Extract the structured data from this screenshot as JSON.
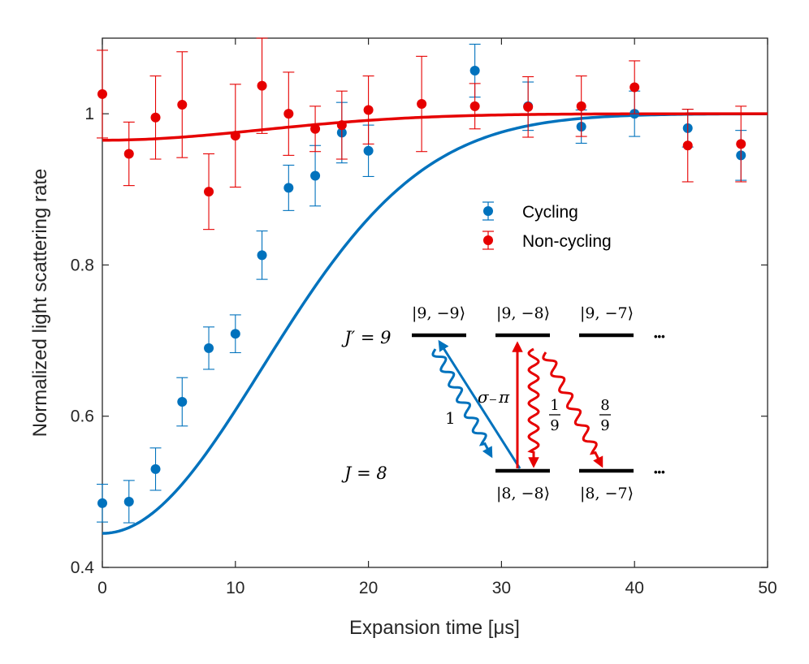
{
  "chart_data": {
    "type": "scatter",
    "xlabel": "Expansion time [μs]",
    "ylabel": "Normalized light scattering rate",
    "xlim": [
      0,
      50
    ],
    "ylim": [
      0.4,
      1.1
    ],
    "xticks": [
      "0",
      "10",
      "20",
      "30",
      "40",
      "50"
    ],
    "yticks": [
      "0.4",
      "0.6",
      "0.8",
      "1"
    ],
    "grid": false,
    "legend_position": "center-right",
    "series": [
      {
        "name": "Cycling",
        "color": "#0072bd",
        "x": [
          0,
          2,
          4,
          6,
          8,
          10,
          12,
          14,
          16,
          18,
          20,
          28,
          32,
          36,
          40,
          44,
          48
        ],
        "y": [
          0.485,
          0.487,
          0.53,
          0.619,
          0.69,
          0.709,
          0.813,
          0.902,
          0.918,
          0.975,
          0.951,
          1.057,
          1.01,
          0.983,
          1.0,
          0.981,
          0.945
        ],
        "err": [
          0.025,
          0.028,
          0.028,
          0.032,
          0.028,
          0.025,
          0.032,
          0.03,
          0.04,
          0.04,
          0.034,
          0.035,
          0.032,
          0.022,
          0.03,
          0.025,
          0.033
        ]
      },
      {
        "name": "Non-cycling",
        "color": "#e60000",
        "x": [
          0,
          2,
          4,
          6,
          8,
          10,
          12,
          14,
          16,
          18,
          20,
          24,
          28,
          32,
          36,
          40,
          44,
          48
        ],
        "y": [
          1.026,
          0.947,
          0.995,
          1.012,
          0.897,
          0.971,
          1.037,
          1.0,
          0.98,
          0.985,
          1.005,
          1.013,
          1.01,
          1.009,
          1.01,
          1.035,
          0.958,
          0.96
        ],
        "err": [
          0.058,
          0.042,
          0.055,
          0.07,
          0.05,
          0.068,
          0.063,
          0.055,
          0.03,
          0.045,
          0.045,
          0.063,
          0.03,
          0.04,
          0.04,
          0.035,
          0.048,
          0.05
        ]
      }
    ],
    "fits": [
      {
        "series": "Cycling",
        "color": "#0072bd",
        "model": "gaussian",
        "base": 0.445,
        "sigma": 12
      },
      {
        "series": "Non-cycling",
        "color": "#e60000",
        "model": "gaussian",
        "base": 0.965,
        "sigma": 12
      }
    ],
    "inset_labels": {
      "upper_level": "J′ = 9",
      "lower_level": "J = 8",
      "states_upper": [
        "|9, −9⟩",
        "|9, −8⟩",
        "|9, −7⟩"
      ],
      "states_lower": [
        "|8, −8⟩",
        "|8, −7⟩"
      ],
      "ellipsis": "•••",
      "sigma_label": "σ₋",
      "pi_label": "π",
      "branch_1": "1",
      "branch_frac_1": {
        "num": "1",
        "den": "9"
      },
      "branch_frac_2": {
        "num": "8",
        "den": "9"
      }
    }
  }
}
